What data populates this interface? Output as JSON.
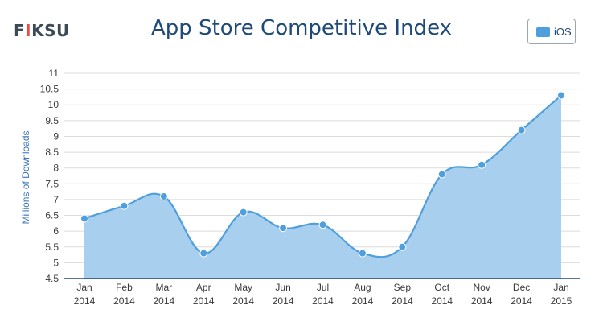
{
  "brand": {
    "logo_letter_1": "F",
    "logo_letter_accent": "I",
    "logo_rest": "KSU"
  },
  "colors": {
    "series": "#4f9fdc",
    "area": "#a9cfee",
    "grid": "#dcdcdc",
    "axis": "#1f4a78"
  },
  "chart_data": {
    "type": "area",
    "title": "App Store Competitive Index",
    "ylabel": "Millions of Downloads",
    "xlabel": "",
    "ylim": [
      4.5,
      11
    ],
    "yticks": [
      "4.5",
      "5",
      "5.5",
      "6",
      "6.5",
      "7",
      "7.5",
      "8",
      "8.5",
      "9",
      "9.5",
      "10",
      "10.5",
      "11"
    ],
    "categories": [
      [
        "Jan",
        "2014"
      ],
      [
        "Feb",
        "2014"
      ],
      [
        "Mar",
        "2014"
      ],
      [
        "Apr",
        "2014"
      ],
      [
        "May",
        "2014"
      ],
      [
        "Jun",
        "2014"
      ],
      [
        "Jul",
        "2014"
      ],
      [
        "Aug",
        "2014"
      ],
      [
        "Sep",
        "2014"
      ],
      [
        "Oct",
        "2014"
      ],
      [
        "Nov",
        "2014"
      ],
      [
        "Dec",
        "2014"
      ],
      [
        "Jan",
        "2015"
      ]
    ],
    "series": [
      {
        "name": "iOS",
        "values": [
          6.4,
          6.8,
          7.1,
          5.3,
          6.6,
          6.1,
          6.2,
          5.3,
          5.5,
          7.8,
          8.1,
          9.2,
          10.3
        ]
      }
    ],
    "legend": "top-right",
    "grid": true
  }
}
